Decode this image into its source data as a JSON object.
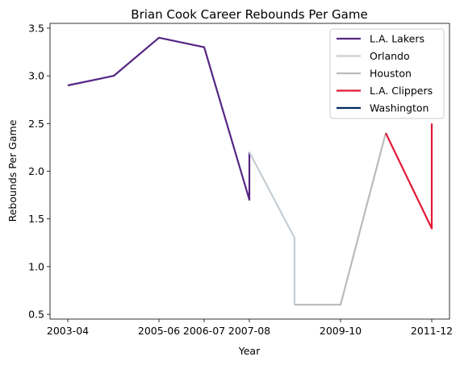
{
  "chart_data": {
    "type": "line",
    "title": "Brian Cook Career Rebounds Per Game",
    "xlabel": "Year",
    "ylabel": "Rebounds Per Game",
    "x_tick_labels": [
      "2003-04",
      "2005-06",
      "2006-07",
      "2007-08",
      "2009-10",
      "2011-12"
    ],
    "y_ticks": [
      0.5,
      1.0,
      1.5,
      2.0,
      2.5,
      3.0,
      3.5
    ],
    "y_tick_labels": [
      "0.5",
      "1.0",
      "1.5",
      "2.0",
      "2.5",
      "3.0",
      "3.5"
    ],
    "ylim": [
      0.45,
      3.55
    ],
    "grid": false,
    "legend_position": "top-right",
    "series": [
      {
        "name": "L.A. Lakers",
        "color": "#552583",
        "x": [
          "2003-04",
          "2004-05",
          "2005-06",
          "2006-07",
          "2007-08",
          "2007-08"
        ],
        "y": [
          2.9,
          3.0,
          3.4,
          3.3,
          1.7,
          2.2
        ]
      },
      {
        "name": "Orlando",
        "color": "#c4ced4",
        "x": [
          "2007-08",
          "2008-09",
          "2008-09"
        ],
        "y": [
          2.2,
          1.3,
          0.6
        ]
      },
      {
        "name": "Houston",
        "color": "#bababa",
        "x": [
          "2008-09",
          "2009-10",
          "2010-11"
        ],
        "y": [
          0.6,
          0.6,
          2.4
        ]
      },
      {
        "name": "L.A. Clippers",
        "color": "#e31837",
        "x": [
          "2010-11",
          "2011-12",
          "2011-12"
        ],
        "y": [
          2.4,
          1.4,
          2.5
        ]
      },
      {
        "name": "Washington",
        "color": "#002b5c",
        "x": [
          "2011-12"
        ],
        "y": [
          1.4
        ]
      }
    ]
  }
}
